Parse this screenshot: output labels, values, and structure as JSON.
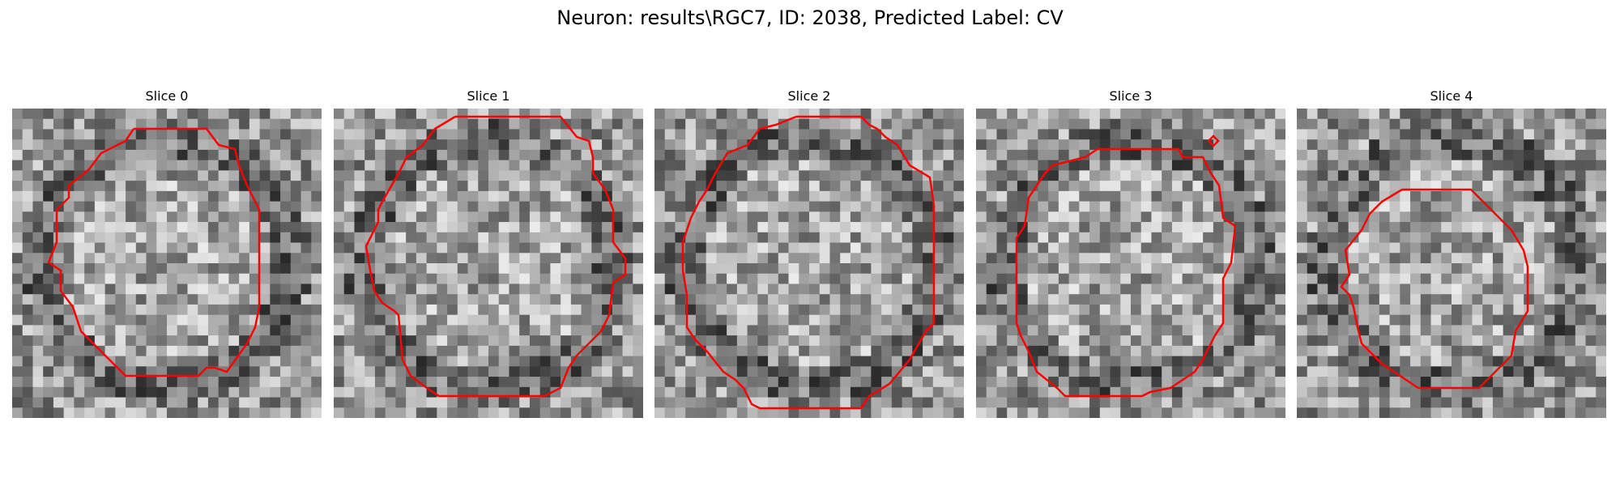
{
  "figure": {
    "title": "Neuron: results\\RGC7, ID: 2038, Predicted Label: CV"
  },
  "colors": {
    "contour": "#ff0000",
    "background": "#ffffff"
  },
  "slices": [
    {
      "title": "Slice 0"
    },
    {
      "title": "Slice 1"
    },
    {
      "title": "Slice 2"
    },
    {
      "title": "Slice 3"
    },
    {
      "title": "Slice 4"
    }
  ]
}
